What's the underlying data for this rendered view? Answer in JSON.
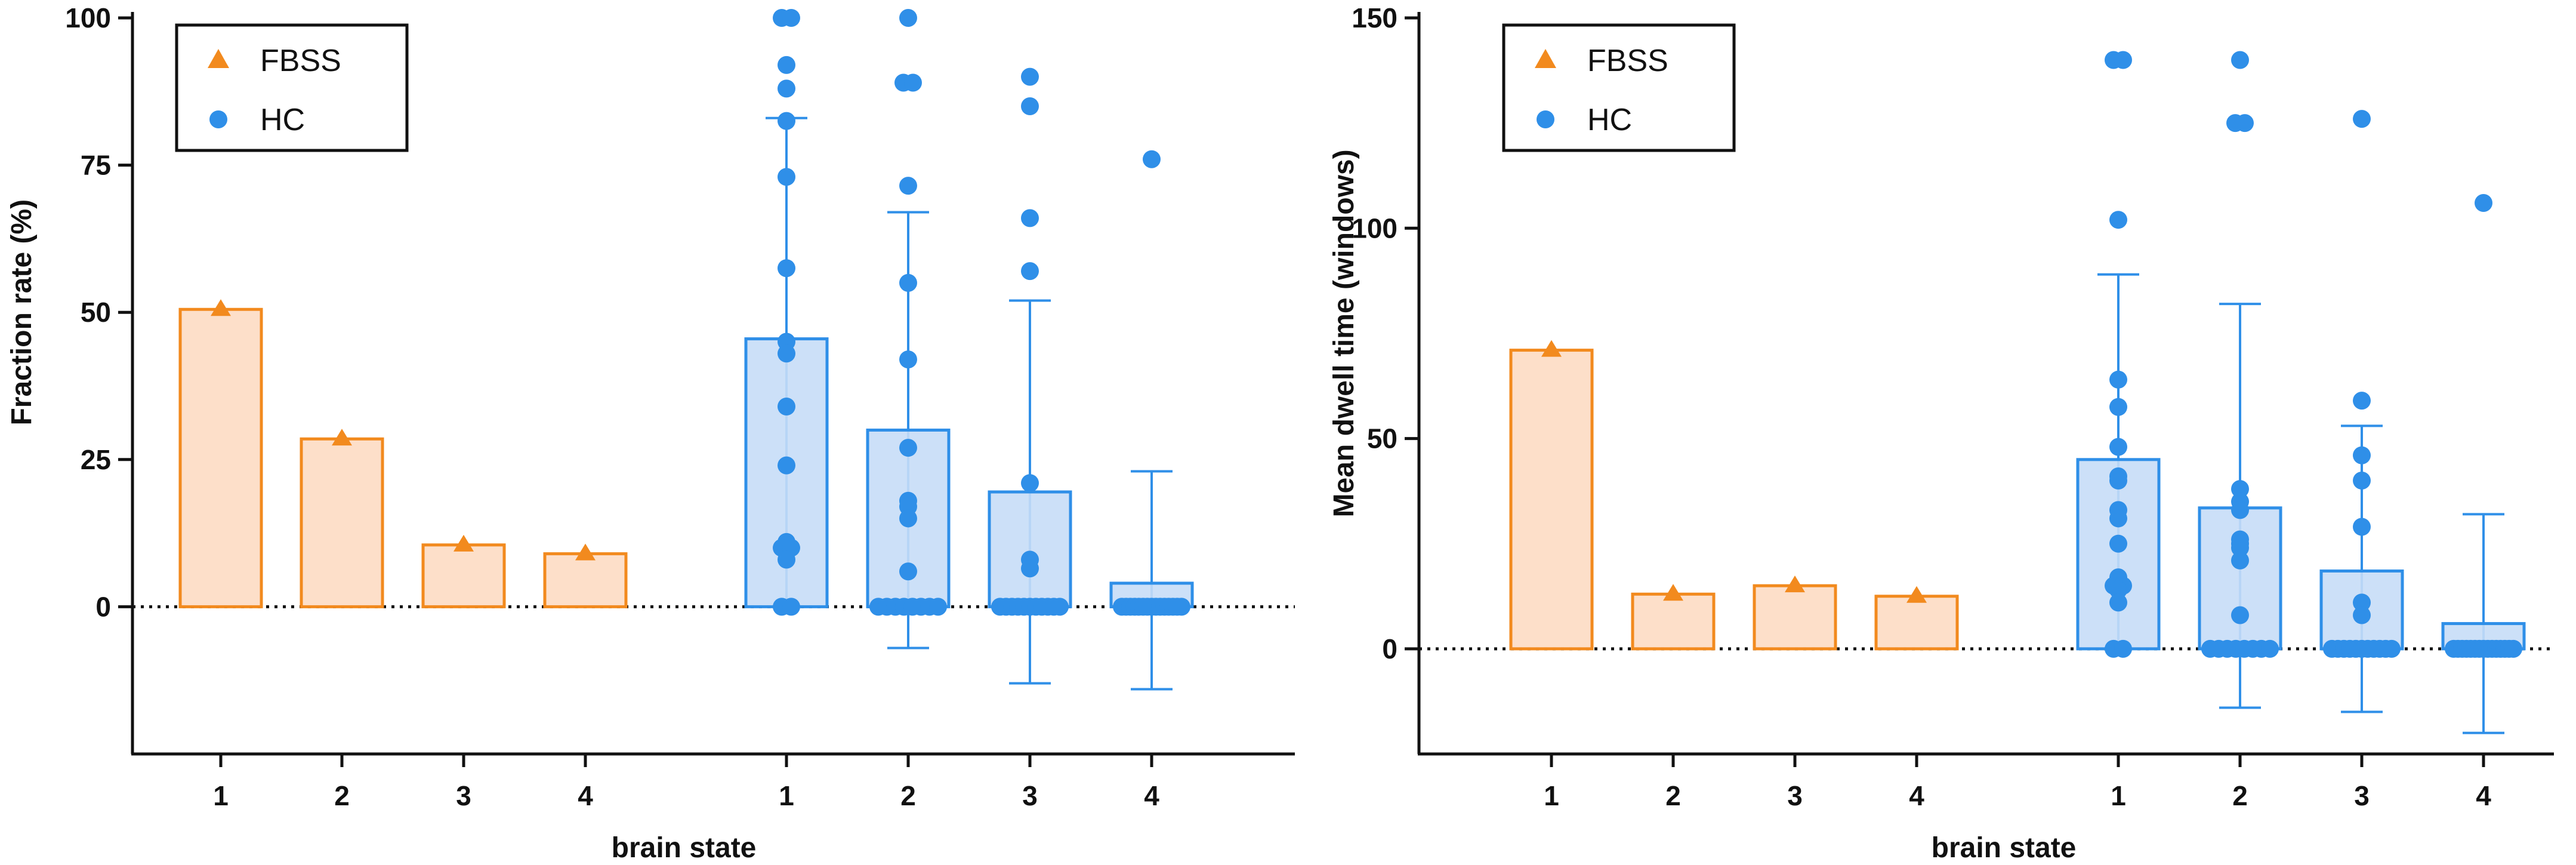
{
  "chart_data": [
    {
      "type": "bar",
      "panel": "left",
      "ylabel": "Fraction rate (%)",
      "xlabel": "brain state",
      "ylim": [
        -25,
        100
      ],
      "yticks": [
        0,
        25,
        50,
        75,
        100
      ],
      "reference_line": 0,
      "legend": {
        "position": "top-left",
        "entries": [
          "FBSS",
          "HC"
        ]
      },
      "series": [
        {
          "name": "FBSS",
          "marker": "triangle",
          "color": "#F28A1E",
          "fill": "#FDDCC3",
          "categories": [
            "1",
            "2",
            "3",
            "4"
          ],
          "values": [
            50.5,
            28.5,
            10.5,
            9
          ]
        },
        {
          "name": "HC",
          "marker": "circle",
          "color": "#2F8FE8",
          "fill": "#C7DDF7",
          "categories": [
            "1",
            "2",
            "3",
            "4"
          ],
          "values": [
            45.5,
            30,
            19.5,
            4
          ],
          "error_low": [
            0,
            -7,
            -13,
            -14
          ],
          "error_high": [
            83,
            67,
            52,
            23
          ],
          "points": [
            [
              100,
              100,
              92,
              88,
              82.5,
              73,
              57.5,
              45,
              43,
              34,
              24,
              11,
              10.5,
              10,
              10,
              8,
              0,
              0
            ],
            [
              100,
              89,
              89,
              71.5,
              55,
              42,
              27,
              18,
              17,
              15,
              6,
              0,
              0,
              0,
              0,
              0,
              0,
              0,
              0
            ],
            [
              90,
              85,
              66,
              57,
              21,
              8,
              6.5,
              0,
              0,
              0,
              0,
              0,
              0,
              0,
              0,
              0,
              0,
              0
            ],
            [
              76,
              0,
              0,
              0,
              0,
              0,
              0,
              0,
              0,
              0,
              0,
              0,
              0,
              0,
              0,
              0
            ]
          ]
        }
      ]
    },
    {
      "type": "bar",
      "panel": "right",
      "ylabel": "Mean dwell time (windows)",
      "xlabel": "brain state",
      "ylim": [
        -25,
        150
      ],
      "yticks": [
        0,
        50,
        100,
        150
      ],
      "reference_line": 0,
      "legend": {
        "position": "top-left",
        "entries": [
          "FBSS",
          "HC"
        ]
      },
      "series": [
        {
          "name": "FBSS",
          "marker": "triangle",
          "color": "#F28A1E",
          "fill": "#FDDCC3",
          "categories": [
            "1",
            "2",
            "3",
            "4"
          ],
          "values": [
            71,
            13,
            15,
            12.5
          ]
        },
        {
          "name": "HC",
          "marker": "circle",
          "color": "#2F8FE8",
          "fill": "#C7DDF7",
          "categories": [
            "1",
            "2",
            "3",
            "4"
          ],
          "values": [
            45,
            33.5,
            18.5,
            6
          ],
          "error_low": [
            0,
            -14,
            -15,
            -20
          ],
          "error_high": [
            89,
            82,
            53,
            32
          ],
          "points": [
            [
              140,
              140,
              102,
              64,
              57.5,
              48,
              41,
              40,
              33,
              31,
              25,
              17,
              15,
              15,
              14,
              11,
              0,
              0
            ],
            [
              140,
              125,
              125,
              38,
              35,
              33,
              26,
              25,
              24,
              21,
              8,
              0,
              0,
              0,
              0,
              0,
              0,
              0,
              0
            ],
            [
              126,
              59,
              46,
              40,
              29,
              11,
              8,
              0,
              0,
              0,
              0,
              0,
              0,
              0,
              0,
              0,
              0,
              0
            ],
            [
              106,
              0,
              0,
              0,
              0,
              0,
              0,
              0,
              0,
              0,
              0,
              0,
              0,
              0,
              0,
              0
            ]
          ]
        }
      ]
    }
  ]
}
